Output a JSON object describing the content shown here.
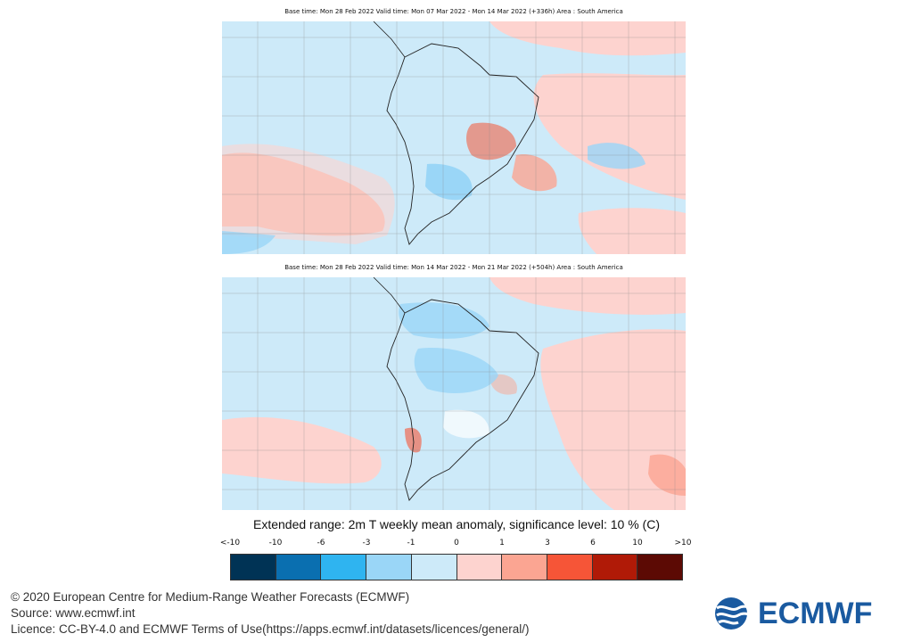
{
  "panels": [
    {
      "header": "Base time: Mon 28 Feb 2022 Valid time: Mon 07 Mar 2022 - Mon 14 Mar 2022 (+336h) Area : South America",
      "valid_start": "Mon 07 Mar 2022",
      "valid_end": "Mon 14 Mar 2022",
      "lead_time": "+336h"
    },
    {
      "header": "Base time: Mon 28 Feb 2022 Valid time: Mon 14 Mar 2022 - Mon 21 Mar 2022 (+504h) Area : South America",
      "valid_start": "Mon 14 Mar 2022",
      "valid_end": "Mon 21 Mar 2022",
      "lead_time": "+504h"
    }
  ],
  "legend": {
    "title": "Extended range: 2m T weekly mean anomaly, significance level: 10 % (C)",
    "ticks": [
      "<-10",
      "-10",
      "-6",
      "-3",
      "-1",
      "0",
      "1",
      "3",
      "6",
      "10",
      ">10"
    ],
    "colors": [
      "#003355",
      "#0a6fb0",
      "#2fb4f0",
      "#9ad6f7",
      "#cdeaf9",
      "#fdd3cf",
      "#fba592",
      "#f65537",
      "#b01a07",
      "#5c0a04"
    ]
  },
  "colors": {
    "ocean_neutral": "#cdeaf9",
    "cold_light": "#9ad6f7",
    "warm_light": "#fdd3cf",
    "warm_mid": "#fba592",
    "land_outline": "#222222",
    "brand": "#1a5aa0"
  },
  "footer": {
    "copyright": "© 2020 European Centre for Medium-Range Weather Forecasts (ECMWF)",
    "source": "Source: www.ecmwf.int",
    "licence": "Licence: CC-BY-4.0 and ECMWF Terms of Use(https://apps.ecmwf.int/datasets/licences/general/)"
  },
  "logo": {
    "text": "ECMWF"
  }
}
